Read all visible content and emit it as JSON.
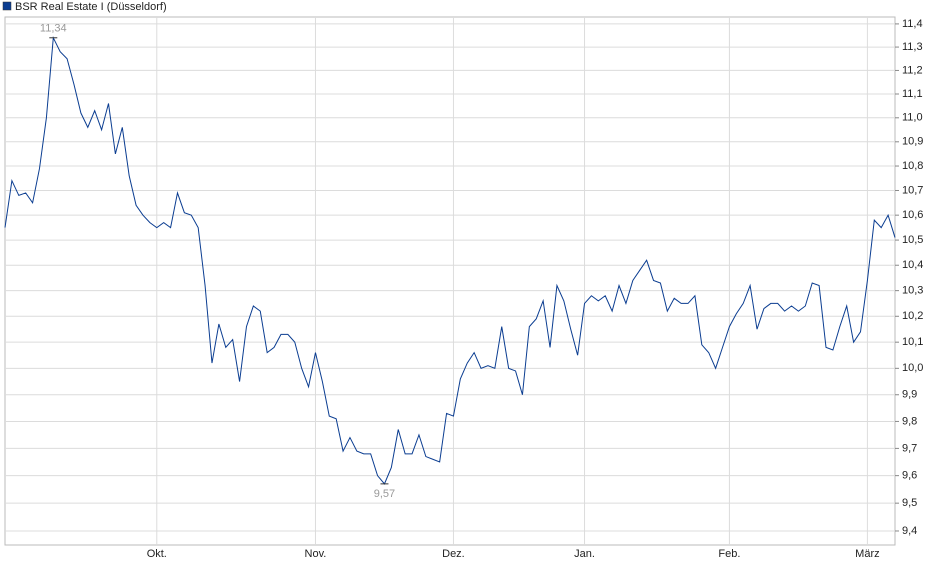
{
  "chart_data": {
    "type": "line",
    "log_scale": true,
    "grid": true,
    "ylim": [
      9.35,
      11.43
    ],
    "yticks": [
      {
        "value": 9.4,
        "label": "9,4"
      },
      {
        "value": 9.5,
        "label": "9,5"
      },
      {
        "value": 9.6,
        "label": "9,6"
      },
      {
        "value": 9.7,
        "label": "9,7"
      },
      {
        "value": 9.8,
        "label": "9,8"
      },
      {
        "value": 9.9,
        "label": "9,9"
      },
      {
        "value": 10.0,
        "label": "10,0"
      },
      {
        "value": 10.1,
        "label": "10,1"
      },
      {
        "value": 10.2,
        "label": "10,2"
      },
      {
        "value": 10.3,
        "label": "10,3"
      },
      {
        "value": 10.4,
        "label": "10,4"
      },
      {
        "value": 10.5,
        "label": "10,5"
      },
      {
        "value": 10.6,
        "label": "10,6"
      },
      {
        "value": 10.7,
        "label": "10,7"
      },
      {
        "value": 10.8,
        "label": "10,8"
      },
      {
        "value": 10.9,
        "label": "10,9"
      },
      {
        "value": 11.0,
        "label": "11,0"
      },
      {
        "value": 11.1,
        "label": "11,1"
      },
      {
        "value": 11.2,
        "label": "11,2"
      },
      {
        "value": 11.3,
        "label": "11,3"
      },
      {
        "value": 11.4,
        "label": "11,4"
      }
    ],
    "xlim": [
      0,
      129
    ],
    "xticks": [
      {
        "value": 22,
        "label": "Okt."
      },
      {
        "value": 45,
        "label": "Nov."
      },
      {
        "value": 65,
        "label": "Dez."
      },
      {
        "value": 84,
        "label": "Jan."
      },
      {
        "value": 105,
        "label": "Feb."
      },
      {
        "value": 125,
        "label": "März"
      }
    ],
    "series": [
      {
        "name": "BSR Real Estate I (Düsseldorf)",
        "color": "#0b3d91",
        "values": [
          10.55,
          10.74,
          10.68,
          10.69,
          10.65,
          10.79,
          11.0,
          11.34,
          11.28,
          11.25,
          11.14,
          11.02,
          10.96,
          11.03,
          10.95,
          11.06,
          10.85,
          10.96,
          10.76,
          10.64,
          10.6,
          10.57,
          10.55,
          10.57,
          10.55,
          10.69,
          10.61,
          10.6,
          10.55,
          10.32,
          10.02,
          10.17,
          10.08,
          10.11,
          9.95,
          10.16,
          10.24,
          10.22,
          10.06,
          10.08,
          10.13,
          10.13,
          10.1,
          10.0,
          9.93,
          10.06,
          9.95,
          9.82,
          9.81,
          9.69,
          9.74,
          9.69,
          9.68,
          9.68,
          9.6,
          9.57,
          9.63,
          9.77,
          9.68,
          9.68,
          9.75,
          9.67,
          9.66,
          9.65,
          9.83,
          9.82,
          9.96,
          10.02,
          10.06,
          10.0,
          10.01,
          10.0,
          10.16,
          10.0,
          9.99,
          9.9,
          10.16,
          10.19,
          10.26,
          10.08,
          10.32,
          10.26,
          10.15,
          10.05,
          10.25,
          10.28,
          10.26,
          10.28,
          10.22,
          10.32,
          10.25,
          10.34,
          10.38,
          10.42,
          10.34,
          10.33,
          10.22,
          10.27,
          10.25,
          10.25,
          10.28,
          10.09,
          10.06,
          10.0,
          10.08,
          10.16,
          10.21,
          10.25,
          10.32,
          10.15,
          10.23,
          10.25,
          10.25,
          10.22,
          10.24,
          10.22,
          10.24,
          10.33,
          10.32,
          10.08,
          10.07,
          10.16,
          10.24,
          10.1,
          10.14,
          10.34,
          10.58,
          10.55,
          10.6,
          10.51
        ]
      }
    ],
    "annotations": [
      {
        "x": 7,
        "value": 11.34,
        "label": "11,34",
        "position": "above"
      },
      {
        "x": 55,
        "value": 9.57,
        "label": "9,57",
        "position": "below"
      }
    ]
  }
}
